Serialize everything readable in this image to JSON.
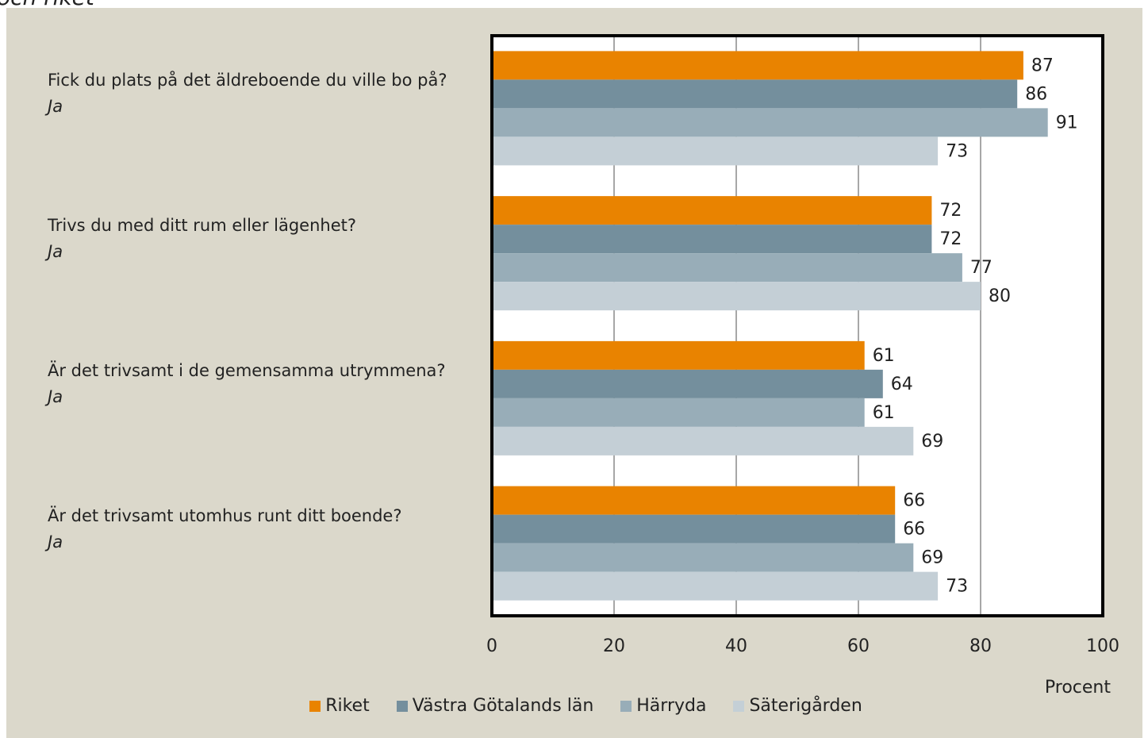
{
  "chart_data": {
    "type": "barh",
    "title": "och riket",
    "categories": [
      "Fick du plats på det äldreboende du ville bo på?",
      "Trivs du med ditt rum eller lägenhet?",
      "Är det trivsamt i de gemensamma utrymmena?",
      "Är det trivsamt utomhus runt ditt boende?"
    ],
    "category_sublabels": [
      "Ja",
      "Ja",
      "Ja",
      "Ja"
    ],
    "series": [
      {
        "name": "Riket",
        "color": "#e98300",
        "values": [
          87,
          72,
          61,
          66
        ]
      },
      {
        "name": "Västra Götalands län",
        "color": "#748f9d",
        "values": [
          86,
          72,
          64,
          66
        ]
      },
      {
        "name": "Härryda",
        "color": "#98adb8",
        "values": [
          91,
          77,
          61,
          69
        ]
      },
      {
        "name": "Säterigården",
        "color": "#c4cfd6",
        "values": [
          73,
          80,
          69,
          73
        ]
      }
    ],
    "xlabel": "Procent",
    "xlim": [
      0,
      100
    ],
    "xticks": [
      0,
      20,
      40,
      60,
      80,
      100
    ],
    "grid": true,
    "legend": "bottom"
  }
}
